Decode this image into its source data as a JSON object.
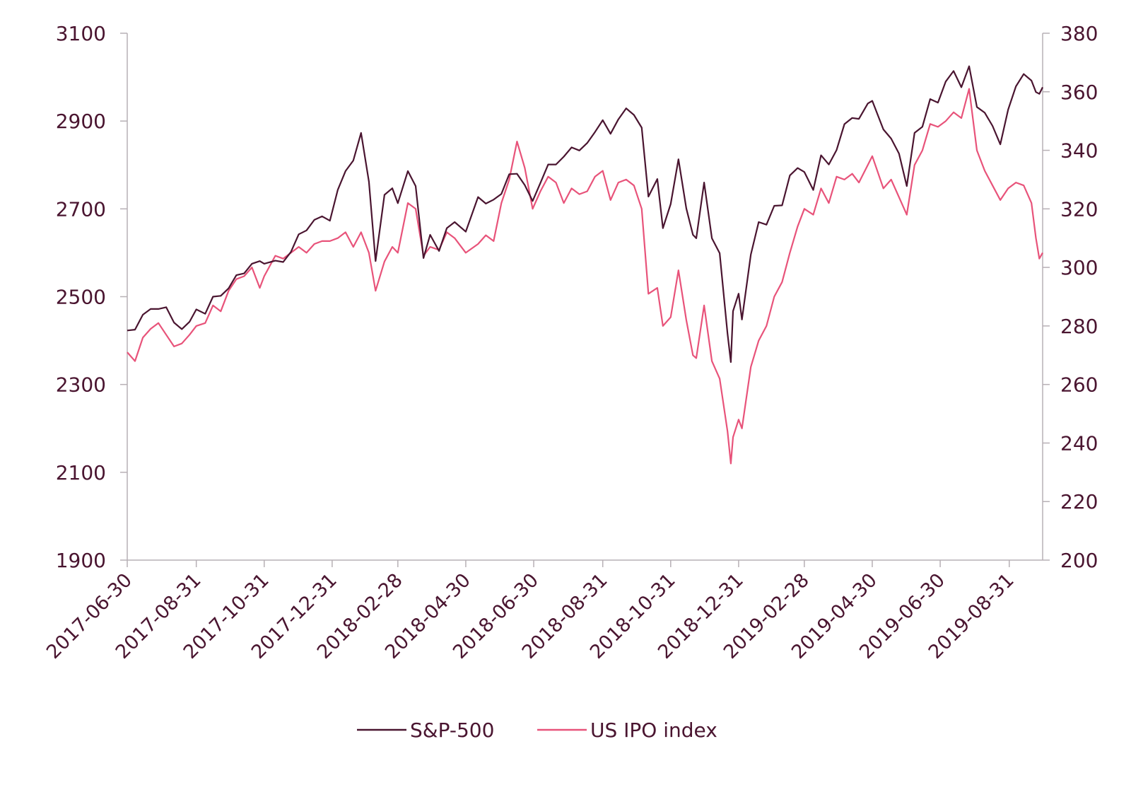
{
  "chart_data": {
    "type": "line",
    "title": "",
    "xlabel": "",
    "ylabel_left": "",
    "ylabel_right": "",
    "x_tick_labels": [
      "2017-06-30",
      "2017-08-31",
      "2017-10-31",
      "2017-12-31",
      "2018-02-28",
      "2018-04-30",
      "2018-06-30",
      "2018-08-31",
      "2018-10-31",
      "2018-12-31",
      "2019-02-28",
      "2019-04-30",
      "2019-06-30",
      "2019-08-31"
    ],
    "x_range": [
      "2017-06-30",
      "2019-09-30"
    ],
    "y_left": {
      "min": 1900,
      "max": 3100,
      "ticks": [
        "1900",
        "2100",
        "2300",
        "2500",
        "2700",
        "2900",
        "3100"
      ]
    },
    "y_right": {
      "min": 200,
      "max": 380,
      "ticks": [
        "200",
        "220",
        "240",
        "260",
        "280",
        "300",
        "320",
        "340",
        "360",
        "380"
      ]
    },
    "grid": false,
    "legend_position": "bottom",
    "series": [
      {
        "name": "S&P-500",
        "axis": "left",
        "color": "#4a1530",
        "points": [
          [
            "2017-06-30",
            2423
          ],
          [
            "2017-07-07",
            2425
          ],
          [
            "2017-07-14",
            2459
          ],
          [
            "2017-07-21",
            2472
          ],
          [
            "2017-07-28",
            2472
          ],
          [
            "2017-08-04",
            2476
          ],
          [
            "2017-08-11",
            2441
          ],
          [
            "2017-08-18",
            2426
          ],
          [
            "2017-08-25",
            2443
          ],
          [
            "2017-08-31",
            2471
          ],
          [
            "2017-09-08",
            2461
          ],
          [
            "2017-09-15",
            2500
          ],
          [
            "2017-09-22",
            2502
          ],
          [
            "2017-09-29",
            2519
          ],
          [
            "2017-10-06",
            2549
          ],
          [
            "2017-10-13",
            2553
          ],
          [
            "2017-10-20",
            2575
          ],
          [
            "2017-10-27",
            2581
          ],
          [
            "2017-10-31",
            2575
          ],
          [
            "2017-11-10",
            2582
          ],
          [
            "2017-11-17",
            2579
          ],
          [
            "2017-11-24",
            2602
          ],
          [
            "2017-12-01",
            2642
          ],
          [
            "2017-12-08",
            2651
          ],
          [
            "2017-12-15",
            2675
          ],
          [
            "2017-12-22",
            2683
          ],
          [
            "2017-12-29",
            2673
          ],
          [
            "2018-01-05",
            2743
          ],
          [
            "2018-01-12",
            2786
          ],
          [
            "2018-01-19",
            2810
          ],
          [
            "2018-01-26",
            2873
          ],
          [
            "2018-02-02",
            2762
          ],
          [
            "2018-02-08",
            2581
          ],
          [
            "2018-02-16",
            2732
          ],
          [
            "2018-02-23",
            2747
          ],
          [
            "2018-02-28",
            2713
          ],
          [
            "2018-03-09",
            2786
          ],
          [
            "2018-03-16",
            2752
          ],
          [
            "2018-03-23",
            2588
          ],
          [
            "2018-03-29",
            2641
          ],
          [
            "2018-04-06",
            2604
          ],
          [
            "2018-04-13",
            2656
          ],
          [
            "2018-04-20",
            2670
          ],
          [
            "2018-04-30",
            2648
          ],
          [
            "2018-05-11",
            2727
          ],
          [
            "2018-05-18",
            2712
          ],
          [
            "2018-05-25",
            2721
          ],
          [
            "2018-06-01",
            2734
          ],
          [
            "2018-06-08",
            2779
          ],
          [
            "2018-06-15",
            2780
          ],
          [
            "2018-06-22",
            2754
          ],
          [
            "2018-06-29",
            2718
          ],
          [
            "2018-07-06",
            2759
          ],
          [
            "2018-07-13",
            2801
          ],
          [
            "2018-07-20",
            2801
          ],
          [
            "2018-07-27",
            2819
          ],
          [
            "2018-08-03",
            2840
          ],
          [
            "2018-08-10",
            2833
          ],
          [
            "2018-08-17",
            2850
          ],
          [
            "2018-08-24",
            2875
          ],
          [
            "2018-08-31",
            2902
          ],
          [
            "2018-09-07",
            2871
          ],
          [
            "2018-09-14",
            2904
          ],
          [
            "2018-09-21",
            2929
          ],
          [
            "2018-09-28",
            2914
          ],
          [
            "2018-10-05",
            2885
          ],
          [
            "2018-10-11",
            2728
          ],
          [
            "2018-10-19",
            2768
          ],
          [
            "2018-10-24",
            2656
          ],
          [
            "2018-10-31",
            2711
          ],
          [
            "2018-11-07",
            2813
          ],
          [
            "2018-11-14",
            2701
          ],
          [
            "2018-11-20",
            2641
          ],
          [
            "2018-11-23",
            2633
          ],
          [
            "2018-11-30",
            2760
          ],
          [
            "2018-12-07",
            2633
          ],
          [
            "2018-12-14",
            2599
          ],
          [
            "2018-12-21",
            2416
          ],
          [
            "2018-12-24",
            2351
          ],
          [
            "2018-12-26",
            2467
          ],
          [
            "2018-12-31",
            2507
          ],
          [
            "2019-01-03",
            2448
          ],
          [
            "2019-01-11",
            2596
          ],
          [
            "2019-01-18",
            2670
          ],
          [
            "2019-01-25",
            2664
          ],
          [
            "2019-02-01",
            2707
          ],
          [
            "2019-02-08",
            2708
          ],
          [
            "2019-02-15",
            2776
          ],
          [
            "2019-02-22",
            2793
          ],
          [
            "2019-02-28",
            2784
          ],
          [
            "2019-03-08",
            2743
          ],
          [
            "2019-03-15",
            2822
          ],
          [
            "2019-03-22",
            2801
          ],
          [
            "2019-03-29",
            2834
          ],
          [
            "2019-04-05",
            2893
          ],
          [
            "2019-04-12",
            2907
          ],
          [
            "2019-04-18",
            2905
          ],
          [
            "2019-04-26",
            2940
          ],
          [
            "2019-04-30",
            2946
          ],
          [
            "2019-05-10",
            2881
          ],
          [
            "2019-05-17",
            2860
          ],
          [
            "2019-05-24",
            2826
          ],
          [
            "2019-05-31",
            2752
          ],
          [
            "2019-06-07",
            2873
          ],
          [
            "2019-06-14",
            2887
          ],
          [
            "2019-06-21",
            2950
          ],
          [
            "2019-06-28",
            2942
          ],
          [
            "2019-07-05",
            2990
          ],
          [
            "2019-07-12",
            3014
          ],
          [
            "2019-07-19",
            2977
          ],
          [
            "2019-07-26",
            3025
          ],
          [
            "2019-08-02",
            2932
          ],
          [
            "2019-08-09",
            2919
          ],
          [
            "2019-08-16",
            2889
          ],
          [
            "2019-08-23",
            2847
          ],
          [
            "2019-08-30",
            2926
          ],
          [
            "2019-09-06",
            2979
          ],
          [
            "2019-09-13",
            3007
          ],
          [
            "2019-09-20",
            2992
          ],
          [
            "2019-09-24",
            2966
          ],
          [
            "2019-09-27",
            2962
          ],
          [
            "2019-09-30",
            2977
          ]
        ]
      },
      {
        "name": "US IPO index",
        "axis": "right",
        "color": "#e8537a",
        "points": [
          [
            "2017-06-30",
            271
          ],
          [
            "2017-07-07",
            268
          ],
          [
            "2017-07-14",
            276
          ],
          [
            "2017-07-21",
            279
          ],
          [
            "2017-07-28",
            281
          ],
          [
            "2017-08-04",
            277
          ],
          [
            "2017-08-11",
            273
          ],
          [
            "2017-08-18",
            274
          ],
          [
            "2017-08-25",
            277
          ],
          [
            "2017-08-31",
            280
          ],
          [
            "2017-09-08",
            281
          ],
          [
            "2017-09-15",
            287
          ],
          [
            "2017-09-22",
            285
          ],
          [
            "2017-09-29",
            292
          ],
          [
            "2017-10-06",
            296
          ],
          [
            "2017-10-13",
            297
          ],
          [
            "2017-10-20",
            300
          ],
          [
            "2017-10-27",
            293
          ],
          [
            "2017-10-31",
            297
          ],
          [
            "2017-11-10",
            304
          ],
          [
            "2017-11-17",
            303
          ],
          [
            "2017-11-24",
            305
          ],
          [
            "2017-12-01",
            307
          ],
          [
            "2017-12-08",
            305
          ],
          [
            "2017-12-15",
            308
          ],
          [
            "2017-12-22",
            309
          ],
          [
            "2017-12-29",
            309
          ],
          [
            "2018-01-05",
            310
          ],
          [
            "2018-01-12",
            312
          ],
          [
            "2018-01-19",
            307
          ],
          [
            "2018-01-26",
            312
          ],
          [
            "2018-02-02",
            305
          ],
          [
            "2018-02-08",
            292
          ],
          [
            "2018-02-16",
            302
          ],
          [
            "2018-02-23",
            307
          ],
          [
            "2018-02-28",
            305
          ],
          [
            "2018-03-09",
            322
          ],
          [
            "2018-03-16",
            320
          ],
          [
            "2018-03-23",
            304
          ],
          [
            "2018-03-29",
            307
          ],
          [
            "2018-04-06",
            306
          ],
          [
            "2018-04-13",
            312
          ],
          [
            "2018-04-20",
            310
          ],
          [
            "2018-04-30",
            305
          ],
          [
            "2018-05-11",
            308
          ],
          [
            "2018-05-18",
            311
          ],
          [
            "2018-05-25",
            309
          ],
          [
            "2018-06-01",
            322
          ],
          [
            "2018-06-08",
            330
          ],
          [
            "2018-06-15",
            343
          ],
          [
            "2018-06-22",
            334
          ],
          [
            "2018-06-29",
            320
          ],
          [
            "2018-07-06",
            326
          ],
          [
            "2018-07-13",
            331
          ],
          [
            "2018-07-20",
            329
          ],
          [
            "2018-07-27",
            322
          ],
          [
            "2018-08-03",
            327
          ],
          [
            "2018-08-10",
            325
          ],
          [
            "2018-08-17",
            326
          ],
          [
            "2018-08-24",
            331
          ],
          [
            "2018-08-31",
            333
          ],
          [
            "2018-09-07",
            323
          ],
          [
            "2018-09-14",
            329
          ],
          [
            "2018-09-21",
            330
          ],
          [
            "2018-09-28",
            328
          ],
          [
            "2018-10-05",
            320
          ],
          [
            "2018-10-11",
            291
          ],
          [
            "2018-10-19",
            293
          ],
          [
            "2018-10-24",
            280
          ],
          [
            "2018-10-31",
            283
          ],
          [
            "2018-11-07",
            299
          ],
          [
            "2018-11-14",
            282
          ],
          [
            "2018-11-20",
            270
          ],
          [
            "2018-11-23",
            269
          ],
          [
            "2018-11-30",
            287
          ],
          [
            "2018-12-07",
            268
          ],
          [
            "2018-12-14",
            262
          ],
          [
            "2018-12-21",
            244
          ],
          [
            "2018-12-24",
            233
          ],
          [
            "2018-12-26",
            242
          ],
          [
            "2018-12-31",
            248
          ],
          [
            "2019-01-03",
            245
          ],
          [
            "2019-01-11",
            266
          ],
          [
            "2019-01-18",
            275
          ],
          [
            "2019-01-25",
            280
          ],
          [
            "2019-02-01",
            290
          ],
          [
            "2019-02-08",
            295
          ],
          [
            "2019-02-15",
            305
          ],
          [
            "2019-02-22",
            314
          ],
          [
            "2019-02-28",
            320
          ],
          [
            "2019-03-08",
            318
          ],
          [
            "2019-03-15",
            327
          ],
          [
            "2019-03-22",
            322
          ],
          [
            "2019-03-29",
            331
          ],
          [
            "2019-04-05",
            330
          ],
          [
            "2019-04-12",
            332
          ],
          [
            "2019-04-18",
            329
          ],
          [
            "2019-04-26",
            335
          ],
          [
            "2019-04-30",
            338
          ],
          [
            "2019-05-10",
            327
          ],
          [
            "2019-05-17",
            330
          ],
          [
            "2019-05-24",
            324
          ],
          [
            "2019-05-31",
            318
          ],
          [
            "2019-06-07",
            335
          ],
          [
            "2019-06-14",
            340
          ],
          [
            "2019-06-21",
            349
          ],
          [
            "2019-06-28",
            348
          ],
          [
            "2019-07-05",
            350
          ],
          [
            "2019-07-12",
            353
          ],
          [
            "2019-07-19",
            351
          ],
          [
            "2019-07-26",
            361
          ],
          [
            "2019-08-02",
            340
          ],
          [
            "2019-08-09",
            333
          ],
          [
            "2019-08-16",
            328
          ],
          [
            "2019-08-23",
            323
          ],
          [
            "2019-08-30",
            327
          ],
          [
            "2019-09-06",
            329
          ],
          [
            "2019-09-13",
            328
          ],
          [
            "2019-09-20",
            322
          ],
          [
            "2019-09-24",
            310
          ],
          [
            "2019-09-27",
            303
          ],
          [
            "2019-09-30",
            305
          ]
        ]
      }
    ]
  }
}
